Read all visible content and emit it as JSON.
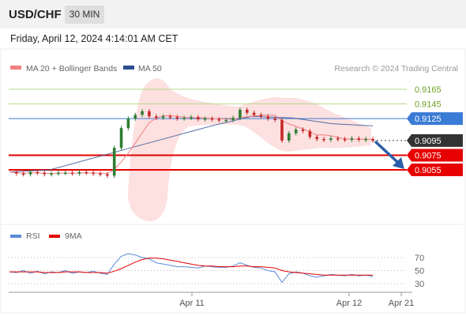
{
  "header": {
    "symbol": "USD/CHF",
    "timeframe": "30 MIN"
  },
  "timestamp": "Friday, April 12, 2024 4:14:01 AM CET",
  "legend": {
    "ma20": "MA 20 + Bollinger Bands",
    "ma50": "MA 50",
    "source": "Research © 2024 Trading Central"
  },
  "rsi_legend": {
    "rsi": "RSI",
    "ma9": "9MA"
  },
  "colors": {
    "support": "#e60000",
    "resistance_green": "#6aa121",
    "pivot_blue": "#3a7bd5",
    "current": "#333333",
    "ma50": "#2b4f8f",
    "bollinger": "#ffd9d9",
    "arrow": "#2b5ea8",
    "candle_up": "#2e7d32",
    "candle_down": "#c62828"
  },
  "chart_data": [
    {
      "type": "line",
      "title": "",
      "ylim": [
        0.9035,
        0.9175
      ],
      "levels": [
        {
          "label": "0.9165",
          "value": 0.9165,
          "kind": "resistance"
        },
        {
          "label": "0.9145",
          "value": 0.9145,
          "kind": "resistance"
        },
        {
          "label": "0.9125",
          "value": 0.9125,
          "kind": "pivot"
        },
        {
          "label": "0.9095",
          "value": 0.9095,
          "kind": "current"
        },
        {
          "label": "0.9075",
          "value": 0.9075,
          "kind": "support"
        },
        {
          "label": "0.9055",
          "value": 0.9055,
          "kind": "support"
        }
      ],
      "x_ticks": [
        "Apr 11",
        "Apr 12",
        "Apr 21"
      ],
      "series": [
        {
          "name": "MA 50",
          "values": [
            0.9052,
            0.9055,
            0.907,
            0.9085,
            0.91,
            0.9115,
            0.9128,
            0.9126,
            0.9118,
            0.9115
          ]
        }
      ],
      "price": [
        0.9052,
        0.905,
        0.9049,
        0.9052,
        0.9051,
        0.9049,
        0.905,
        0.9051,
        0.9051,
        0.905,
        0.9052,
        0.9051,
        0.905,
        0.9049,
        0.9047,
        0.9085,
        0.9112,
        0.9125,
        0.913,
        0.9135,
        0.9128,
        0.9126,
        0.9128,
        0.9127,
        0.9125,
        0.9126,
        0.9127,
        0.9124,
        0.9125,
        0.9124,
        0.9123,
        0.9123,
        0.9126,
        0.9137,
        0.9133,
        0.913,
        0.9128,
        0.9125,
        0.9123,
        0.9095,
        0.9105,
        0.911,
        0.9108,
        0.91,
        0.9097,
        0.9096,
        0.9098,
        0.9097,
        0.9096,
        0.9098,
        0.9096,
        0.9097,
        0.9095
      ],
      "forecast_arrow": {
        "from": 0.9095,
        "to": 0.9055
      }
    },
    {
      "type": "line",
      "title": "",
      "ylim": [
        20,
        80
      ],
      "y_ticks": [
        "70",
        "50",
        "30"
      ],
      "series": [
        {
          "name": "RSI",
          "values": [
            48,
            47,
            50,
            46,
            49,
            45,
            48,
            47,
            50,
            46,
            48,
            47,
            49,
            46,
            44,
            60,
            72,
            76,
            74,
            70,
            68,
            62,
            60,
            58,
            56,
            56,
            55,
            54,
            57,
            56,
            55,
            55,
            57,
            62,
            58,
            55,
            54,
            50,
            48,
            32,
            45,
            48,
            46,
            42,
            40,
            42,
            44,
            43,
            42,
            44,
            42,
            43,
            41
          ]
        },
        {
          "name": "9MA",
          "values": [
            48,
            48,
            48,
            48,
            48,
            47,
            47,
            47,
            48,
            48,
            48,
            47,
            47,
            47,
            46,
            49,
            53,
            58,
            63,
            67,
            69,
            69,
            68,
            66,
            64,
            62,
            60,
            58,
            57,
            57,
            56,
            56,
            56,
            57,
            57,
            56,
            56,
            55,
            54,
            50,
            48,
            47,
            46,
            45,
            44,
            43,
            43,
            43,
            43,
            43,
            43,
            43,
            43
          ]
        }
      ]
    }
  ]
}
